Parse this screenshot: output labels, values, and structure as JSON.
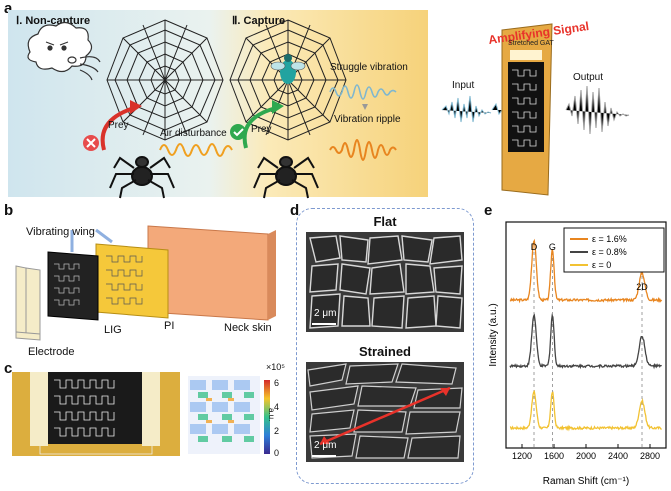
{
  "panel_a": {
    "label": "a",
    "noncapture_title": "Ⅰ. Non-capture",
    "capture_title": "Ⅱ. Capture",
    "prey_label_1": "Prey",
    "prey_label_2": "Prey",
    "air_disturbance": "Air disturbance",
    "struggle_vibration": "Struggle vibration",
    "vibration_ripple": "Vibration ripple",
    "amplifying_signal": "Amplifying Signal",
    "stretched_gat": "Stretched GAT",
    "input": "Input",
    "output": "Output",
    "colors": {
      "blue_bg": "#cfe5ee",
      "yellow_bg": "#f7d77c",
      "signal_red": "#e8322a",
      "wave_orange": "#f0a020",
      "wave_blue": "#7fb7cf"
    }
  },
  "panel_b": {
    "label": "b",
    "vibrating_wing": "Vibrating wing",
    "lig": "LIG",
    "pi": "PI",
    "neck_skin": "Neck skin",
    "electrode": "Electrode"
  },
  "panel_c": {
    "label": "c",
    "colorbar_exp": "×10⁵",
    "colorbar_unit": "a.u.",
    "colorbar_ticks": [
      "6",
      "4",
      "2",
      "0"
    ]
  },
  "panel_d": {
    "label": "d",
    "flat": "Flat",
    "strained": "Strained",
    "scale_1": "2 μm",
    "scale_2": "2 μm"
  },
  "panel_e": {
    "label": "e",
    "chart_data": {
      "type": "line",
      "xlabel": "Raman Shift (cm⁻¹)",
      "ylabel": "Intensity (a.u.)",
      "xlim": [
        1000,
        3000
      ],
      "xticks": [
        "1200",
        "1600",
        "2000",
        "2400",
        "2800"
      ],
      "peak_labels": [
        "D",
        "G",
        "2D"
      ],
      "peak_positions": [
        1350,
        1580,
        2700
      ],
      "legend_placement": "top-right",
      "series": [
        {
          "name": "ε = 1.6%",
          "color": "#e8851f",
          "offset": 2,
          "peaks": [
            1.0,
            0.85,
            0.45
          ]
        },
        {
          "name": "ε = 0.8%",
          "color": "#444444",
          "offset": 1,
          "peaks": [
            0.85,
            0.85,
            0.5
          ]
        },
        {
          "name": "ε = 0",
          "color": "#f2c232",
          "offset": 0,
          "peaks": [
            0.6,
            0.6,
            0.45
          ]
        }
      ]
    }
  }
}
